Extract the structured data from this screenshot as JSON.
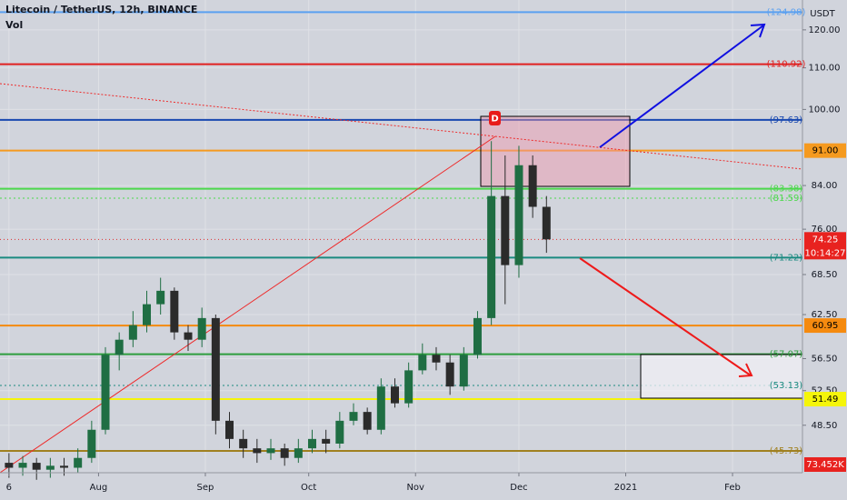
{
  "chart_data": {
    "type": "candlestick",
    "title": "Litecoin / TetherUS, 12h, BINANCE",
    "subtitle": "Vol",
    "currency": "USDT",
    "log_scale": true,
    "grid": true,
    "up_color": "#1f6e43",
    "down_color": "#2b2b2b",
    "x": [
      0,
      4,
      8,
      12,
      16,
      20,
      24,
      28,
      32,
      36,
      40,
      44,
      48,
      52,
      56,
      60,
      64,
      68,
      72,
      76,
      80,
      84,
      88,
      92,
      96,
      100,
      104,
      108,
      112,
      116,
      120,
      124,
      128,
      132,
      136,
      140,
      144,
      148,
      152,
      156
    ],
    "open": [
      44.5,
      44,
      44.5,
      43.8,
      44.2,
      44,
      45,
      48,
      57,
      59,
      61,
      64,
      66,
      60,
      59,
      62,
      49,
      47,
      46,
      45.5,
      46,
      45,
      46,
      47,
      46.5,
      49,
      50,
      48,
      53,
      51,
      55,
      57,
      56,
      53,
      57,
      62,
      82,
      70,
      88,
      80
    ],
    "high": [
      45.5,
      45.2,
      45,
      45,
      45,
      46,
      49,
      58,
      60,
      63,
      66,
      68,
      66.5,
      61,
      63.5,
      62.5,
      50,
      48,
      47,
      47,
      46.5,
      47,
      48,
      48,
      50,
      51,
      50.5,
      54,
      54,
      56,
      58.5,
      58,
      57,
      58,
      63,
      93,
      90,
      92,
      90,
      82
    ],
    "low": [
      43,
      43.2,
      42.8,
      43,
      43.2,
      43.5,
      44.5,
      47.5,
      55,
      58,
      60,
      62.5,
      59,
      57.5,
      58,
      47.5,
      46,
      45,
      44.5,
      44.8,
      44.2,
      44.5,
      45.5,
      45.5,
      46,
      48.5,
      47.5,
      47.5,
      50.5,
      50.5,
      54.5,
      55,
      52,
      52.5,
      56.5,
      61,
      64,
      68,
      78,
      72
    ],
    "close": [
      44,
      44.5,
      43.8,
      44.2,
      44,
      45,
      48,
      57,
      59,
      61,
      64,
      66,
      60,
      59,
      62,
      49,
      47,
      46,
      45.5,
      46,
      45,
      46,
      47,
      46.5,
      49,
      50,
      48,
      53,
      51,
      55,
      57,
      56,
      53,
      57,
      62,
      82,
      70,
      88,
      80,
      74.25
    ],
    "xlim": [
      -2.6,
      230.3
    ],
    "xticks": [
      {
        "value": 0,
        "label": "6"
      },
      {
        "value": 26,
        "label": "Aug"
      },
      {
        "value": 57,
        "label": "Sep"
      },
      {
        "value": 87,
        "label": "Oct"
      },
      {
        "value": 118,
        "label": "Nov"
      },
      {
        "value": 148,
        "label": "Dec"
      },
      {
        "value": 179,
        "label": "2021"
      },
      {
        "value": 210,
        "label": "Feb"
      }
    ],
    "ylim": [
      43.5,
      128.5
    ],
    "yticks": [
      {
        "value": 120,
        "label": "120.00"
      },
      {
        "value": 110,
        "label": "110.00"
      },
      {
        "value": 100,
        "label": "100.00"
      },
      {
        "value": 84,
        "label": "84.00"
      },
      {
        "value": 76,
        "label": "76.00"
      },
      {
        "value": 68.5,
        "label": "68.50"
      },
      {
        "value": 62.5,
        "label": "62.50"
      },
      {
        "value": 56.5,
        "label": "56.50"
      },
      {
        "value": 52.5,
        "label": "52.50"
      },
      {
        "value": 48.5,
        "label": "48.50"
      }
    ],
    "levels": [
      {
        "value": 124.98,
        "label": "(124.98)",
        "color": "#5aa0f0",
        "dash": false,
        "filled": false
      },
      {
        "value": 110.92,
        "label": "(110.92)",
        "color": "#e02020",
        "dash": false,
        "filled": false
      },
      {
        "value": 97.63,
        "label": "(97.63)",
        "color": "#1848b0",
        "dash": false,
        "filled": false
      },
      {
        "value": 91.0,
        "label": "91.00",
        "color": "#f59a1f",
        "dash": false,
        "filled": true
      },
      {
        "value": 83.38,
        "label": "(83.38)",
        "color": "#4cd84c",
        "dash": false,
        "filled": false
      },
      {
        "value": 81.59,
        "label": "(81.59)",
        "color": "#4cd84c",
        "dash": true,
        "filled": false
      },
      {
        "value": 71.22,
        "label": "(71.22)",
        "color": "#1a8a80",
        "dash": false,
        "filled": false
      },
      {
        "value": 60.95,
        "label": "60.95",
        "color": "#f58a0f",
        "dash": false,
        "filled": true
      },
      {
        "value": 57.07,
        "label": "(57.07)",
        "color": "#2e9e3e",
        "dash": false,
        "filled": false
      },
      {
        "value": 53.13,
        "label": "(53.13)",
        "color": "#1a8a80",
        "dash": true,
        "filled": false
      },
      {
        "value": 51.49,
        "label": "51.49",
        "color": "#f5f50a",
        "dash": false,
        "filled": true
      },
      {
        "value": 45.73,
        "label": "(45.73)",
        "color": "#a08020",
        "dash": false,
        "filled": false
      }
    ],
    "last_price": 74.25,
    "last_price_label": "74.25",
    "countdown": "10:14:27",
    "volume_label": "73.452K",
    "marker": "D"
  }
}
